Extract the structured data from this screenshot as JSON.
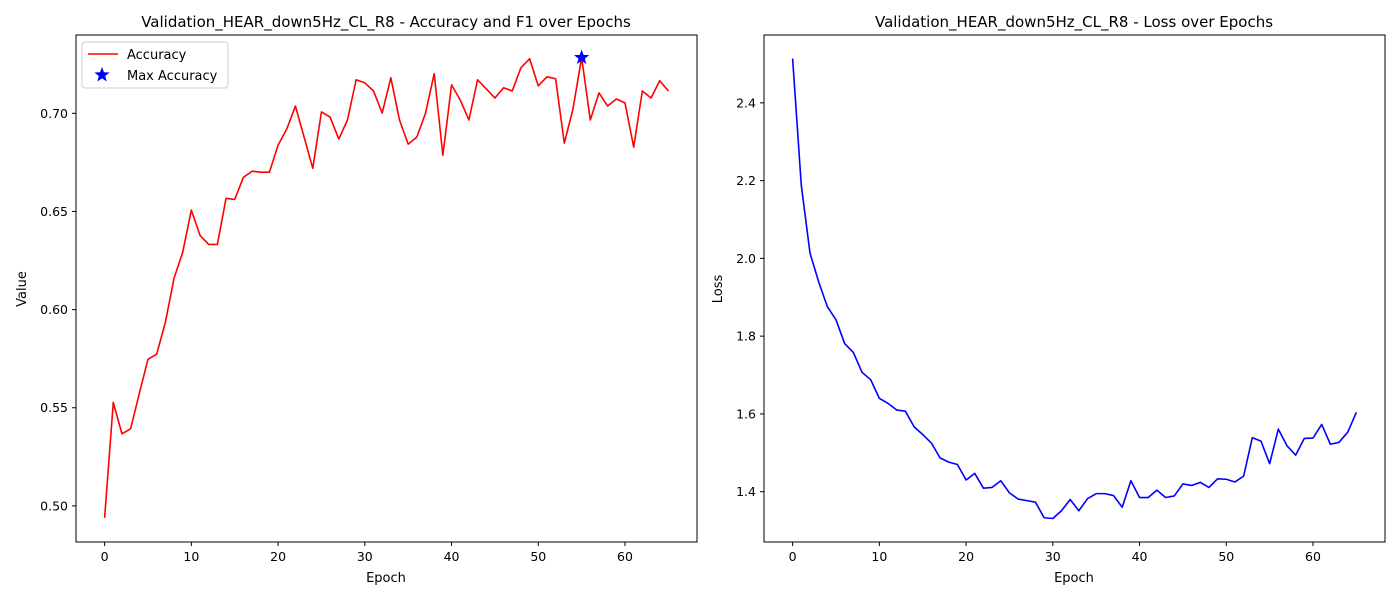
{
  "chart_data": [
    {
      "type": "line",
      "title": "Validation_HEAR_down5Hz_CL_R8 - Accuracy and F1 over Epochs",
      "xlabel": "Epoch",
      "ylabel": "Value",
      "xlim": [
        -3.3,
        68.3
      ],
      "ylim": [
        0.4816,
        0.7399
      ],
      "xticks": [
        0,
        10,
        20,
        30,
        40,
        50,
        60
      ],
      "yticks": [
        0.5,
        0.55,
        0.6,
        0.65,
        0.7
      ],
      "ytick_format": 2,
      "grid": false,
      "legend_position": "upper-left",
      "series": [
        {
          "name": "Accuracy",
          "color": "#ff0000",
          "x": [
            0,
            1,
            2,
            3,
            4,
            5,
            6,
            7,
            8,
            9,
            10,
            11,
            12,
            13,
            14,
            15,
            16,
            17,
            18,
            19,
            20,
            21,
            22,
            23,
            24,
            25,
            26,
            27,
            28,
            29,
            30,
            31,
            32,
            33,
            34,
            35,
            36,
            37,
            38,
            39,
            40,
            41,
            42,
            43,
            44,
            45,
            46,
            47,
            48,
            49,
            50,
            51,
            52,
            53,
            54,
            55,
            56,
            57,
            58,
            59,
            60,
            61,
            62,
            63,
            64,
            65
          ],
          "values": [
            0.4939,
            0.5527,
            0.5367,
            0.5393,
            0.5573,
            0.5747,
            0.5773,
            0.5934,
            0.6159,
            0.6292,
            0.6507,
            0.6378,
            0.6332,
            0.6332,
            0.6567,
            0.6561,
            0.6674,
            0.6705,
            0.67,
            0.67,
            0.6838,
            0.692,
            0.7037,
            0.6879,
            0.672,
            0.7007,
            0.6981,
            0.6869,
            0.6966,
            0.7171,
            0.7155,
            0.7114,
            0.7001,
            0.7181,
            0.6966,
            0.6843,
            0.6879,
            0.7001,
            0.7202,
            0.6786,
            0.7145,
            0.7068,
            0.6966,
            0.7171,
            0.7125,
            0.7078,
            0.713,
            0.7114,
            0.7232,
            0.7278,
            0.714,
            0.7186,
            0.7176,
            0.6848,
            0.7022,
            0.7284,
            0.6966,
            0.7104,
            0.7037,
            0.7073,
            0.7053,
            0.6828,
            0.7114,
            0.7078,
            0.7166,
            0.7114
          ]
        }
      ],
      "markers": [
        {
          "name": "Max Accuracy",
          "color": "#0000ff",
          "x": 55,
          "y": 0.7284
        }
      ]
    },
    {
      "type": "line",
      "title": "Validation_HEAR_down5Hz_CL_R8 - Loss over Epochs",
      "xlabel": "Epoch",
      "ylabel": "Loss",
      "xlim": [
        -3.3,
        68.3
      ],
      "ylim": [
        1.2706,
        2.5745
      ],
      "xticks": [
        0,
        10,
        20,
        30,
        40,
        50,
        60
      ],
      "yticks": [
        1.4,
        1.6,
        1.8,
        2.0,
        2.2,
        2.4
      ],
      "ytick_format": 1,
      "grid": false,
      "series": [
        {
          "color": "#0000ff",
          "x": [
            0,
            1,
            2,
            3,
            4,
            5,
            6,
            7,
            8,
            9,
            10,
            11,
            12,
            13,
            14,
            15,
            16,
            17,
            18,
            19,
            20,
            21,
            22,
            23,
            24,
            25,
            26,
            27,
            28,
            29,
            30,
            31,
            32,
            33,
            34,
            35,
            36,
            37,
            38,
            39,
            40,
            41,
            42,
            43,
            44,
            45,
            46,
            47,
            48,
            49,
            50,
            51,
            52,
            53,
            54,
            55,
            56,
            57,
            58,
            59,
            60,
            61,
            62,
            63,
            64,
            65
          ],
          "values": [
            2.514,
            2.188,
            2.014,
            1.94,
            1.876,
            1.842,
            1.781,
            1.758,
            1.707,
            1.688,
            1.64,
            1.627,
            1.61,
            1.607,
            1.567,
            1.547,
            1.525,
            1.487,
            1.476,
            1.47,
            1.43,
            1.447,
            1.409,
            1.411,
            1.428,
            1.397,
            1.381,
            1.377,
            1.373,
            1.333,
            1.331,
            1.351,
            1.38,
            1.351,
            1.382,
            1.395,
            1.395,
            1.39,
            1.36,
            1.428,
            1.385,
            1.385,
            1.404,
            1.385,
            1.389,
            1.42,
            1.416,
            1.424,
            1.411,
            1.433,
            1.432,
            1.425,
            1.44,
            1.539,
            1.53,
            1.472,
            1.561,
            1.518,
            1.494,
            1.537,
            1.538,
            1.573,
            1.522,
            1.527,
            1.553,
            1.604
          ]
        }
      ]
    }
  ]
}
